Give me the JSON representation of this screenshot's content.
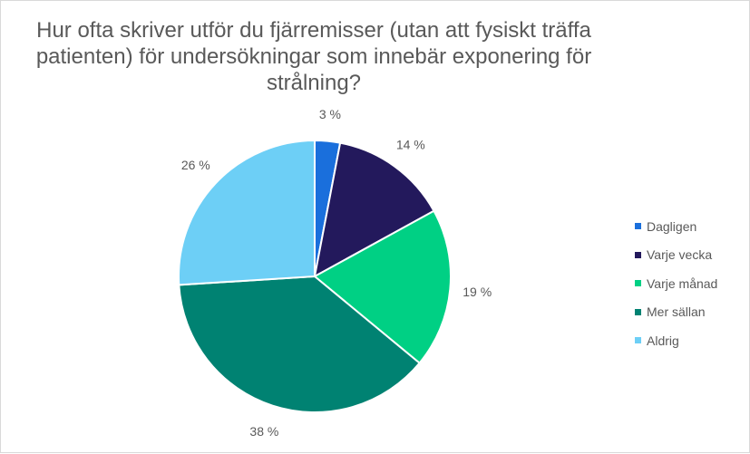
{
  "chart_data": {
    "type": "pie",
    "title": "Hur ofta skriver utför du fjärremisser (utan att fysiskt träffa patienten) för undersökningar som innebär exponering för strålning?",
    "categories": [
      "Dagligen",
      "Varje vecka",
      "Varje månad",
      "Mer sällan",
      "Aldrig"
    ],
    "values": [
      3,
      14,
      19,
      38,
      26
    ],
    "labels": [
      "3 %",
      "14 %",
      "19 %",
      "38 %",
      "26 %"
    ],
    "colors": [
      "#1a6fdc",
      "#23195c",
      "#00d084",
      "#008272",
      "#6dcff6"
    ],
    "legend_position": "right",
    "start_angle": "top, clockwise"
  }
}
